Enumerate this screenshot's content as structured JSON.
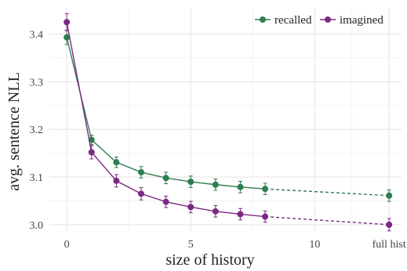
{
  "chart_data": {
    "type": "line",
    "title": "",
    "xlabel": "size of history",
    "ylabel": "avg. sentence NLL",
    "x_ticks": [
      {
        "value": 0,
        "label": "0"
      },
      {
        "value": 5,
        "label": "5"
      },
      {
        "value": 10,
        "label": "10"
      },
      {
        "value": 13,
        "label": "full hist"
      }
    ],
    "y_ticks": [
      {
        "value": 3.0,
        "label": "3.0"
      },
      {
        "value": 3.1,
        "label": "3.1"
      },
      {
        "value": 3.2,
        "label": "3.2"
      },
      {
        "value": 3.3,
        "label": "3.3"
      },
      {
        "value": 3.4,
        "label": "3.4"
      }
    ],
    "xlim": [
      -0.7,
      13.5
    ],
    "ylim": [
      2.985,
      3.455
    ],
    "grid": true,
    "legend_position": "top-right",
    "series": [
      {
        "name": "recalled",
        "color": "#2e7d4f",
        "points": [
          {
            "x": 0,
            "y": 3.393,
            "err": 0.015
          },
          {
            "x": 1,
            "y": 3.178,
            "err": 0.01
          },
          {
            "x": 2,
            "y": 3.131,
            "err": 0.011
          },
          {
            "x": 3,
            "y": 3.11,
            "err": 0.012
          },
          {
            "x": 4,
            "y": 3.098,
            "err": 0.012
          },
          {
            "x": 5,
            "y": 3.09,
            "err": 0.012
          },
          {
            "x": 6,
            "y": 3.084,
            "err": 0.012
          },
          {
            "x": 7,
            "y": 3.079,
            "err": 0.012
          },
          {
            "x": 8,
            "y": 3.075,
            "err": 0.012
          },
          {
            "x": 13,
            "y": 3.061,
            "err": 0.012
          }
        ],
        "dashed_after_x": 8
      },
      {
        "name": "imagined",
        "color": "#7b2a84",
        "points": [
          {
            "x": 0,
            "y": 3.425,
            "err": 0.018
          },
          {
            "x": 1,
            "y": 3.152,
            "err": 0.014
          },
          {
            "x": 2,
            "y": 3.092,
            "err": 0.013
          },
          {
            "x": 3,
            "y": 3.065,
            "err": 0.013
          },
          {
            "x": 4,
            "y": 3.048,
            "err": 0.012
          },
          {
            "x": 5,
            "y": 3.037,
            "err": 0.012
          },
          {
            "x": 6,
            "y": 3.028,
            "err": 0.012
          },
          {
            "x": 7,
            "y": 3.022,
            "err": 0.012
          },
          {
            "x": 8,
            "y": 3.017,
            "err": 0.012
          },
          {
            "x": 13,
            "y": 3.0,
            "err": 0.013
          }
        ],
        "dashed_after_x": 8
      }
    ]
  }
}
